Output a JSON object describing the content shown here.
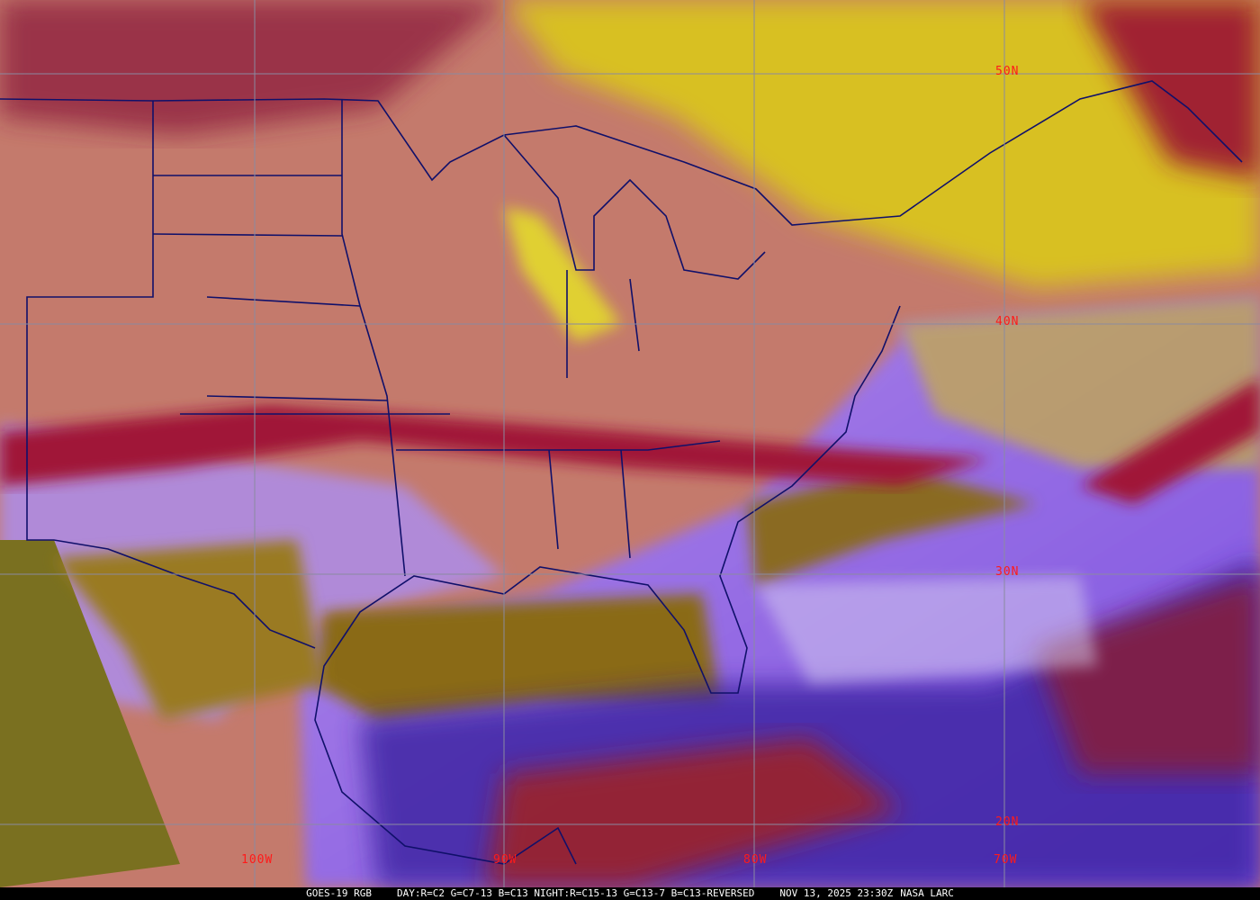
{
  "image": {
    "satellite": "GOES-19 RGB",
    "recipe": "DAY:R=C2 G=C7-13 B=C13 NIGHT:R=C15-13 G=C13-7 B=C13-REVERSED",
    "timestamp": "NOV 13, 2025 23:30Z",
    "credit": "NASA LARC"
  },
  "grid": {
    "latitude_labels": [
      "50N",
      "40N",
      "30N",
      "20N"
    ],
    "longitude_labels": [
      "100W",
      "90W",
      "80W",
      "70W"
    ],
    "label_color": "#ff1a1a",
    "line_color": "#8a8aa0",
    "boundary_color": "#10106a"
  },
  "palette": {
    "clear_land": "#c87868",
    "clear_ocean_night": "#a070e0",
    "warm_ocean": "#8a6a10",
    "high_cloud": "#e0d020",
    "low_cloud": "#d8d8f0",
    "cold_cloud": "#a01830",
    "deep_cloud": "#2a1a80"
  }
}
